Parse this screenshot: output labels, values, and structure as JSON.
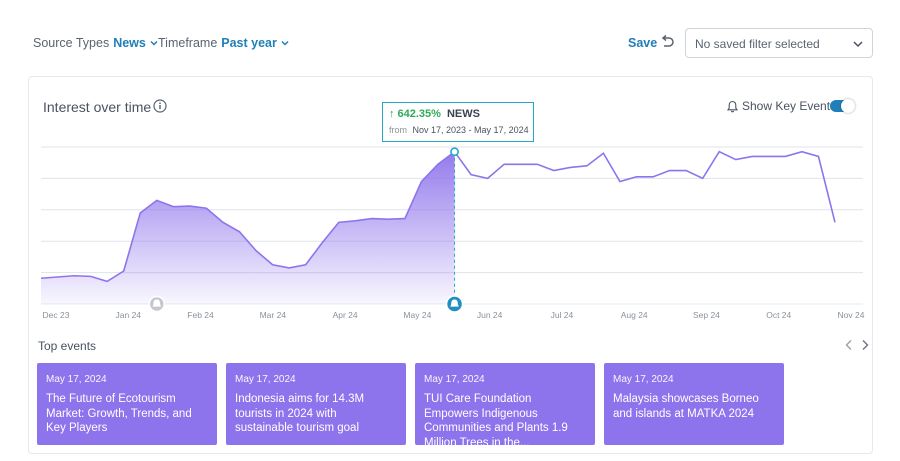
{
  "filters": {
    "source_types": {
      "label": "Source Types",
      "value": "News"
    },
    "timeframe": {
      "label": "Timeframe",
      "value": "Past year"
    }
  },
  "save_label": "Save",
  "saved_filter": {
    "value": "No saved filter selected"
  },
  "chart": {
    "title": "Interest over time",
    "key_events_label": "Show Key Events",
    "key_events_on": true,
    "tooltip": {
      "percent": "642.35%",
      "source": "NEWS",
      "from_label": "from",
      "range": "Nov 17, 2023 - May 17, 2024"
    }
  },
  "chart_data": {
    "type": "area",
    "x_ticks": [
      "Dec 23",
      "Jan 24",
      "Feb 24",
      "Mar 24",
      "Apr 24",
      "May 24",
      "Jun 24",
      "Jul 24",
      "Aug 24",
      "Sep 24",
      "Oct 24",
      "Nov 24"
    ],
    "ylim": [
      0,
      5
    ],
    "y_gridlines": [
      1,
      2,
      3,
      4,
      5
    ],
    "highlight_index": 25,
    "series": [
      {
        "values": [
          0.82,
          0.86,
          0.9,
          0.88,
          0.72,
          1.05,
          2.9,
          3.3,
          3.1,
          3.12,
          3.05,
          2.6,
          2.3,
          1.7,
          1.25,
          1.15,
          1.25,
          1.95,
          2.6,
          2.65,
          2.72,
          2.7,
          2.72,
          3.9,
          4.45,
          4.85,
          4.12,
          4.0,
          4.45,
          4.45,
          4.45,
          4.25,
          4.35,
          4.4,
          4.8,
          3.9,
          4.05,
          4.05,
          4.25,
          4.25,
          4.0,
          4.85,
          4.6,
          4.7,
          4.7,
          4.7,
          4.85,
          4.7,
          2.6
        ]
      }
    ],
    "key_event_indices": [
      7,
      25
    ],
    "fill_color": "#8e74ec",
    "line_color": "#8e74ec"
  },
  "top_events": {
    "label": "Top events",
    "items": [
      {
        "date": "May 17, 2024",
        "headline": "The Future of Ecotourism Market: Growth, Trends, and Key Players"
      },
      {
        "date": "May 17, 2024",
        "headline": "Indonesia aims for 14.3M tourists in 2024 with sustainable tourism goal"
      },
      {
        "date": "May 17, 2024",
        "headline": "TUI Care Foundation Empowers Indigenous Communities and Plants 1.9 Million Trees in the..."
      },
      {
        "date": "May 17, 2024",
        "headline": "Malaysia showcases Borneo and islands at MATKA 2024"
      }
    ]
  }
}
